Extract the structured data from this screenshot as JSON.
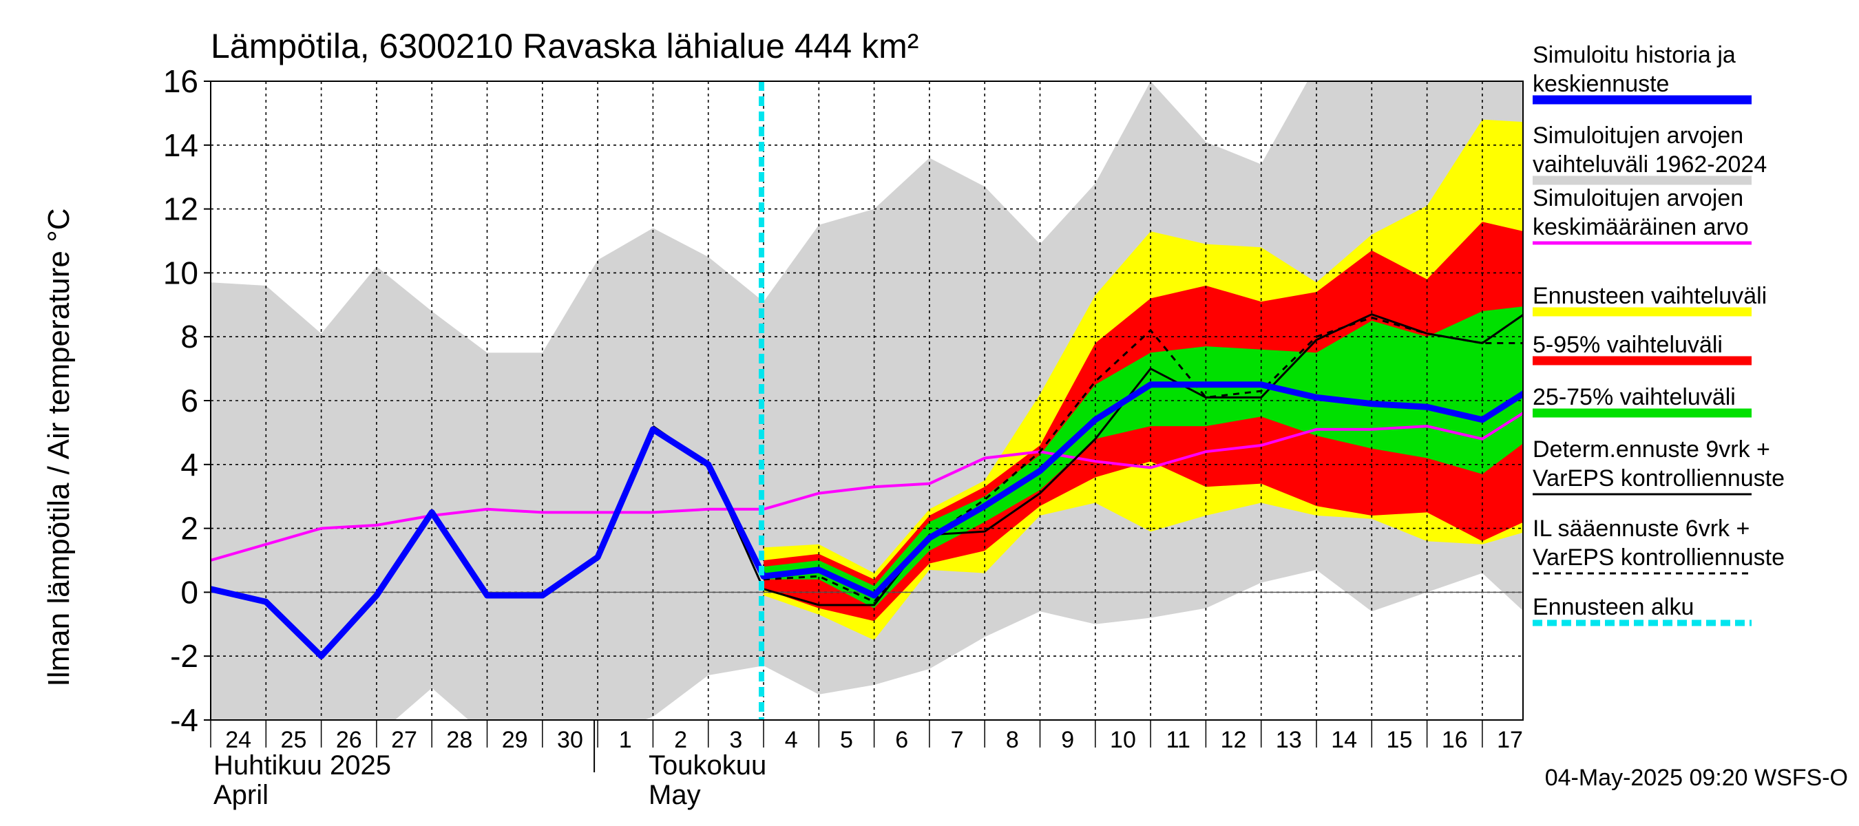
{
  "chart_data": {
    "type": "area",
    "title": "Lämpötila, 6300210 Ravaska lähialue 444 km²",
    "ylabel": "Ilman lämpötila / Air temperature    °C",
    "ylim": [
      -4,
      16
    ],
    "yticks": [
      -4,
      -2,
      0,
      2,
      4,
      6,
      8,
      10,
      12,
      14,
      16
    ],
    "grid": true,
    "legend_position": "right",
    "x_start": "2025-04-24",
    "x_end": "2025-05-17",
    "x_tick_labels": [
      "24",
      "25",
      "26",
      "27",
      "28",
      "29",
      "30",
      "1",
      "2",
      "3",
      "4",
      "5",
      "6",
      "7",
      "8",
      "9",
      "10",
      "11",
      "12",
      "13",
      "14",
      "15",
      "16",
      "17"
    ],
    "month_labels": [
      {
        "fi": "Huhtikuu  2025",
        "en": "April"
      },
      {
        "fi": "Toukokuu",
        "en": "May"
      }
    ],
    "forecast_start": "2025-05-04",
    "timestamp": "04-May-2025 09:20 WSFS-O",
    "colors": {
      "history_range": "#d3d3d3",
      "forecast_range": "#ffff00",
      "range_5_95": "#ff0000",
      "range_25_75": "#00e000",
      "mean": "#ff00ff",
      "simulated": "#0000ff",
      "determ": "#000000",
      "forecast_start": "#00e5ee"
    },
    "legend": [
      {
        "text": [
          "Simuloitu historia ja",
          "keskiennuste"
        ],
        "color": "#0000ff",
        "style": "thick"
      },
      {
        "text": [
          "Simuloitujen arvojen",
          "vaihteluväli 1962-2024"
        ],
        "color": "#d3d3d3",
        "style": "thick"
      },
      {
        "text": [
          "Simuloitujen arvojen",
          "keskimääräinen arvo"
        ],
        "color": "#ff00ff",
        "style": "medium"
      },
      {
        "text": [
          "Ennusteen vaihteluväli"
        ],
        "color": "#ffff00",
        "style": "thick"
      },
      {
        "text": [
          "5-95% vaihteluväli"
        ],
        "color": "#ff0000",
        "style": "thick"
      },
      {
        "text": [
          "25-75% vaihteluväli"
        ],
        "color": "#00e000",
        "style": "thick"
      },
      {
        "text": [
          "Determ.ennuste 9vrk +",
          "VarEPS kontrolliennuste"
        ],
        "color": "#000000",
        "style": "thin"
      },
      {
        "text": [
          "IL sääennuste 6vrk  +",
          "  VarEPS kontrolliennuste"
        ],
        "color": "#000000",
        "style": "dashed"
      },
      {
        "text": [
          "Ennusteen alku"
        ],
        "color": "#00e5ee",
        "style": "dotted"
      }
    ],
    "series": [
      {
        "name": "Simuloitujen arvojen vaihteluväli 1962-2024",
        "kind": "band",
        "x": [
          "2025-04-24",
          "2025-04-25",
          "2025-04-26",
          "2025-04-27",
          "2025-04-28",
          "2025-04-29",
          "2025-04-30",
          "2025-05-01",
          "2025-05-02",
          "2025-05-03",
          "2025-05-04",
          "2025-05-05",
          "2025-05-06",
          "2025-05-07",
          "2025-05-08",
          "2025-05-09",
          "2025-05-10",
          "2025-05-11",
          "2025-05-12",
          "2025-05-13",
          "2025-05-14",
          "2025-05-15",
          "2025-05-16",
          "2025-05-17",
          "2025-05-18"
        ],
        "lower": [
          -4.5,
          -4.5,
          -4.5,
          -4.5,
          -3.0,
          -4.5,
          -4.5,
          -4.5,
          -3.9,
          -2.6,
          -2.3,
          -3.2,
          -2.9,
          -2.4,
          -1.4,
          -0.6,
          -1.0,
          -0.8,
          -0.5,
          0.3,
          0.7,
          -0.6,
          0.0,
          0.6,
          -1.0
        ],
        "upper": [
          9.7,
          9.6,
          8.1,
          10.2,
          8.8,
          7.5,
          7.5,
          10.4,
          11.4,
          10.5,
          9.1,
          11.5,
          12.0,
          13.6,
          12.7,
          10.9,
          12.8,
          16.0,
          14.1,
          13.4,
          16.5,
          16.5,
          16.5,
          16.5,
          16.5
        ]
      },
      {
        "name": "Ennusteen vaihteluväli",
        "kind": "band",
        "x": [
          "2025-05-04",
          "2025-05-05",
          "2025-05-06",
          "2025-05-07",
          "2025-05-08",
          "2025-05-09",
          "2025-05-10",
          "2025-05-11",
          "2025-05-12",
          "2025-05-13",
          "2025-05-14",
          "2025-05-15",
          "2025-05-16",
          "2025-05-17",
          "2025-05-18"
        ],
        "lower": [
          -0.1,
          -0.7,
          -1.5,
          0.7,
          0.6,
          2.4,
          2.8,
          1.9,
          2.4,
          2.8,
          2.4,
          2.3,
          1.6,
          1.5,
          2.0
        ],
        "upper": [
          1.4,
          1.5,
          0.6,
          2.6,
          3.5,
          6.2,
          9.3,
          11.3,
          10.9,
          10.8,
          9.7,
          11.2,
          12.1,
          14.8,
          14.7
        ]
      },
      {
        "name": "5-95% vaihteluväli",
        "kind": "band",
        "x": [
          "2025-05-04",
          "2025-05-05",
          "2025-05-06",
          "2025-05-07",
          "2025-05-08",
          "2025-05-09",
          "2025-05-10",
          "2025-05-11",
          "2025-05-12",
          "2025-05-13",
          "2025-05-14",
          "2025-05-15",
          "2025-05-16",
          "2025-05-17",
          "2025-05-18"
        ],
        "lower": [
          0.1,
          -0.5,
          -0.9,
          0.9,
          1.3,
          2.7,
          3.6,
          4.1,
          3.3,
          3.4,
          2.7,
          2.4,
          2.5,
          1.6,
          2.4
        ],
        "upper": [
          1.0,
          1.2,
          0.4,
          2.4,
          3.3,
          4.6,
          7.8,
          9.2,
          9.6,
          9.1,
          9.4,
          10.7,
          9.8,
          11.6,
          11.2
        ]
      },
      {
        "name": "25-75% vaihteluväli",
        "kind": "band",
        "x": [
          "2025-05-04",
          "2025-05-05",
          "2025-05-06",
          "2025-05-07",
          "2025-05-08",
          "2025-05-09",
          "2025-05-10",
          "2025-05-11",
          "2025-05-12",
          "2025-05-13",
          "2025-05-14",
          "2025-05-15",
          "2025-05-16",
          "2025-05-17",
          "2025-05-18"
        ],
        "lower": [
          0.4,
          0.4,
          -0.5,
          1.3,
          2.2,
          3.2,
          4.8,
          5.2,
          5.2,
          5.5,
          4.9,
          4.5,
          4.2,
          3.7,
          5.0
        ],
        "upper": [
          0.8,
          1.0,
          0.2,
          2.2,
          3.0,
          4.3,
          6.5,
          7.5,
          7.7,
          7.6,
          7.5,
          8.5,
          8.0,
          8.8,
          9.0
        ]
      },
      {
        "name": "Simuloitujen arvojen keskimääräinen arvo",
        "kind": "line",
        "x": [
          "2025-04-24",
          "2025-04-25",
          "2025-04-26",
          "2025-04-27",
          "2025-04-28",
          "2025-04-29",
          "2025-04-30",
          "2025-05-01",
          "2025-05-02",
          "2025-05-03",
          "2025-05-04",
          "2025-05-05",
          "2025-05-06",
          "2025-05-07",
          "2025-05-08",
          "2025-05-09",
          "2025-05-10",
          "2025-05-11",
          "2025-05-12",
          "2025-05-13",
          "2025-05-14",
          "2025-05-15",
          "2025-05-16",
          "2025-05-17",
          "2025-05-18"
        ],
        "values": [
          1.0,
          1.5,
          2.0,
          2.1,
          2.4,
          2.6,
          2.5,
          2.5,
          2.5,
          2.6,
          2.6,
          3.1,
          3.3,
          3.4,
          4.2,
          4.4,
          4.1,
          3.9,
          4.4,
          4.6,
          5.1,
          5.1,
          5.2,
          4.8,
          5.9
        ]
      },
      {
        "name": "IL sääennuste 6vrk  +   VarEPS kontrolliennuste",
        "kind": "dashed",
        "x": [
          "2025-05-04",
          "2025-05-05",
          "2025-05-06",
          "2025-05-07",
          "2025-05-08",
          "2025-05-09",
          "2025-05-10",
          "2025-05-11",
          "2025-05-12",
          "2025-05-13",
          "2025-05-14",
          "2025-05-15",
          "2025-05-16",
          "2025-05-17",
          "2025-05-18"
        ],
        "values": [
          0.4,
          0.5,
          -0.3,
          1.7,
          2.9,
          4.4,
          6.6,
          8.2,
          6.1,
          6.3,
          8.0,
          8.6,
          8.1,
          7.8,
          7.8
        ]
      },
      {
        "name": "Determ.ennuste 9vrk + VarEPS kontrolliennuste",
        "kind": "line",
        "x": [
          "2025-05-02",
          "2025-05-03",
          "2025-05-04",
          "2025-05-05",
          "2025-05-06",
          "2025-05-07",
          "2025-05-08",
          "2025-05-09",
          "2025-05-10",
          "2025-05-11",
          "2025-05-12",
          "2025-05-13",
          "2025-05-14",
          "2025-05-15",
          "2025-05-16",
          "2025-05-17",
          "2025-05-18"
        ],
        "values": [
          5.2,
          4.0,
          0.1,
          -0.4,
          -0.4,
          1.8,
          1.9,
          3.1,
          4.8,
          7.0,
          6.1,
          6.1,
          7.9,
          8.7,
          8.1,
          7.8,
          9.0
        ]
      },
      {
        "name": "Simuloitu historia ja keskiennuste",
        "kind": "thick",
        "x": [
          "2025-04-24",
          "2025-04-25",
          "2025-04-26",
          "2025-04-27",
          "2025-04-28",
          "2025-04-29",
          "2025-04-30",
          "2025-05-01",
          "2025-05-02",
          "2025-05-03",
          "2025-05-04",
          "2025-05-05",
          "2025-05-06",
          "2025-05-07",
          "2025-05-08",
          "2025-05-09",
          "2025-05-10",
          "2025-05-11",
          "2025-05-12",
          "2025-05-13",
          "2025-05-14",
          "2025-05-15",
          "2025-05-16",
          "2025-05-17",
          "2025-05-18"
        ],
        "values": [
          0.1,
          -0.3,
          -2.0,
          -0.1,
          2.5,
          -0.1,
          -0.1,
          1.1,
          5.1,
          4.0,
          0.5,
          0.7,
          -0.1,
          1.7,
          2.7,
          3.8,
          5.4,
          6.5,
          6.5,
          6.5,
          6.1,
          5.9,
          5.8,
          5.4,
          6.5
        ]
      }
    ]
  }
}
